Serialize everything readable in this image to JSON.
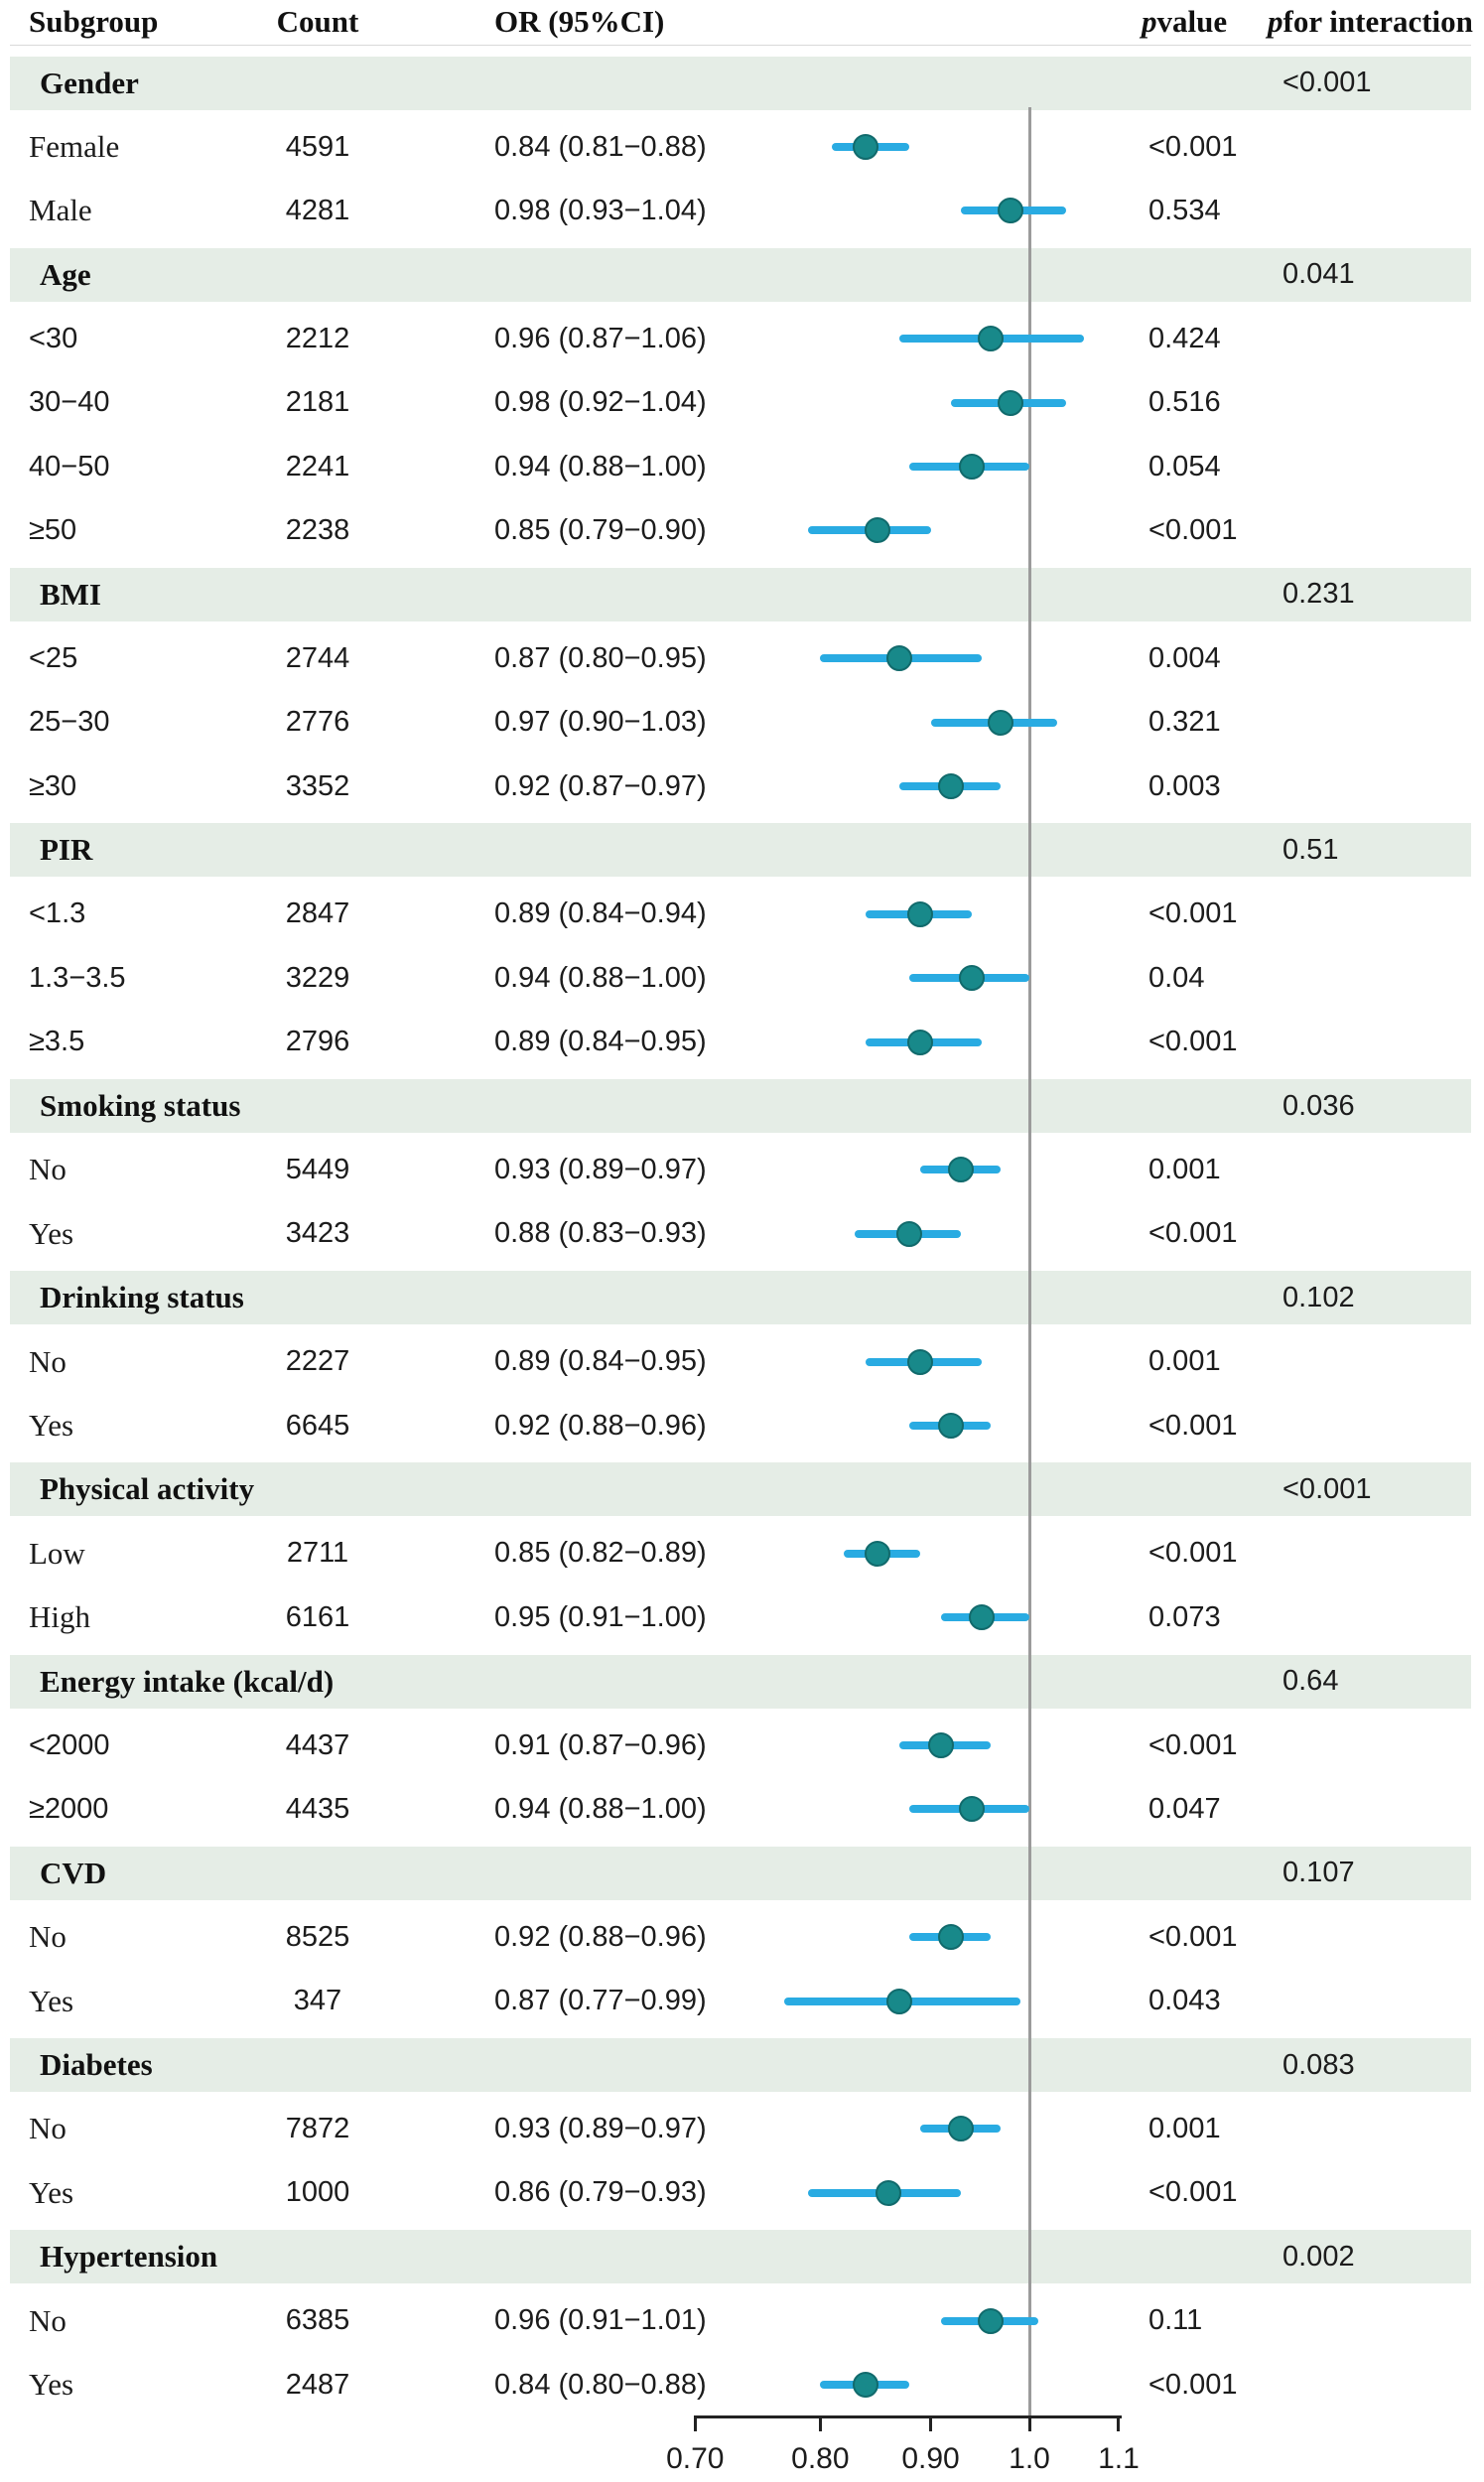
{
  "header": {
    "subgroup": "Subgroup",
    "count": "Count",
    "or_ci": "OR (95%CI)",
    "p_italic": "p",
    "p_value_rest": " value",
    "p_interaction_italic": "p",
    "p_interaction_rest": " for interaction"
  },
  "chart_data": {
    "type": "forest",
    "scale": "log",
    "x_axis": {
      "ticks": [
        0.7,
        0.8,
        0.9,
        1.0,
        1.1
      ],
      "tick_labels": [
        "0.70",
        "0.80",
        "0.90",
        "1.0",
        "1.1"
      ],
      "range": [
        0.7,
        1.1
      ],
      "reference_line": 1.0
    },
    "colors": {
      "dot": "#18898a",
      "dot_border": "#116a6c",
      "ci_line": "#29abe2",
      "reference_line": "#9b9b9b",
      "band": "#e5ede6"
    },
    "rows": [
      {
        "kind": "band",
        "label": "Gender",
        "p_interaction": "<0.001"
      },
      {
        "kind": "data",
        "label": "Female",
        "count": "4591",
        "or_text": "0.84 (0.81−0.88)",
        "or": 0.84,
        "lo": 0.81,
        "hi": 0.88,
        "p": "<0.001"
      },
      {
        "kind": "data",
        "label": "Male",
        "count": "4281",
        "or_text": "0.98 (0.93−1.04)",
        "or": 0.98,
        "lo": 0.93,
        "hi": 1.04,
        "p": "0.534"
      },
      {
        "kind": "band",
        "label": "Age",
        "p_interaction": "0.041"
      },
      {
        "kind": "data",
        "label": "<30",
        "count": "2212",
        "or_text": "0.96 (0.87−1.06)",
        "or": 0.96,
        "lo": 0.87,
        "hi": 1.06,
        "p": "0.424"
      },
      {
        "kind": "data",
        "label": "30−40",
        "count": "2181",
        "or_text": "0.98 (0.92−1.04)",
        "or": 0.98,
        "lo": 0.92,
        "hi": 1.04,
        "p": "0.516"
      },
      {
        "kind": "data",
        "label": "40−50",
        "count": "2241",
        "or_text": "0.94 (0.88−1.00)",
        "or": 0.94,
        "lo": 0.88,
        "hi": 1.0,
        "p": "0.054"
      },
      {
        "kind": "data",
        "label": "≥50",
        "count": "2238",
        "or_text": "0.85 (0.79−0.90)",
        "or": 0.85,
        "lo": 0.79,
        "hi": 0.9,
        "p": "<0.001"
      },
      {
        "kind": "band",
        "label": "BMI",
        "p_interaction": "0.231"
      },
      {
        "kind": "data",
        "label": "<25",
        "count": "2744",
        "or_text": "0.87 (0.80−0.95)",
        "or": 0.87,
        "lo": 0.8,
        "hi": 0.95,
        "p": "0.004"
      },
      {
        "kind": "data",
        "label": "25−30",
        "count": "2776",
        "or_text": "0.97 (0.90−1.03)",
        "or": 0.97,
        "lo": 0.9,
        "hi": 1.03,
        "p": "0.321"
      },
      {
        "kind": "data",
        "label": "≥30",
        "count": "3352",
        "or_text": "0.92 (0.87−0.97)",
        "or": 0.92,
        "lo": 0.87,
        "hi": 0.97,
        "p": "0.003"
      },
      {
        "kind": "band",
        "label": "PIR",
        "p_interaction": "0.51"
      },
      {
        "kind": "data",
        "label": "<1.3",
        "count": "2847",
        "or_text": "0.89 (0.84−0.94)",
        "or": 0.89,
        "lo": 0.84,
        "hi": 0.94,
        "p": "<0.001"
      },
      {
        "kind": "data",
        "label": "1.3−3.5",
        "count": "3229",
        "or_text": "0.94 (0.88−1.00)",
        "or": 0.94,
        "lo": 0.88,
        "hi": 1.0,
        "p": "0.04"
      },
      {
        "kind": "data",
        "label": "≥3.5",
        "count": "2796",
        "or_text": "0.89 (0.84−0.95)",
        "or": 0.89,
        "lo": 0.84,
        "hi": 0.95,
        "p": "<0.001"
      },
      {
        "kind": "band",
        "label": "Smoking status",
        "p_interaction": "0.036"
      },
      {
        "kind": "data",
        "label": "No",
        "count": "5449",
        "or_text": "0.93 (0.89−0.97)",
        "or": 0.93,
        "lo": 0.89,
        "hi": 0.97,
        "p": "0.001"
      },
      {
        "kind": "data",
        "label": "Yes",
        "count": "3423",
        "or_text": "0.88 (0.83−0.93)",
        "or": 0.88,
        "lo": 0.83,
        "hi": 0.93,
        "p": "<0.001"
      },
      {
        "kind": "band",
        "label": "Drinking status",
        "p_interaction": "0.102"
      },
      {
        "kind": "data",
        "label": "No",
        "count": "2227",
        "or_text": "0.89 (0.84−0.95)",
        "or": 0.89,
        "lo": 0.84,
        "hi": 0.95,
        "p": "0.001"
      },
      {
        "kind": "data",
        "label": "Yes",
        "count": "6645",
        "or_text": "0.92 (0.88−0.96)",
        "or": 0.92,
        "lo": 0.88,
        "hi": 0.96,
        "p": "<0.001"
      },
      {
        "kind": "band",
        "label": "Physical activity",
        "p_interaction": "<0.001"
      },
      {
        "kind": "data",
        "label": "Low",
        "count": "2711",
        "or_text": "0.85 (0.82−0.89)",
        "or": 0.85,
        "lo": 0.82,
        "hi": 0.89,
        "p": "<0.001"
      },
      {
        "kind": "data",
        "label": "High",
        "count": "6161",
        "or_text": "0.95 (0.91−1.00)",
        "or": 0.95,
        "lo": 0.91,
        "hi": 1.0,
        "p": "0.073"
      },
      {
        "kind": "band",
        "label": "Energy intake (kcal/d)",
        "p_interaction": "0.64"
      },
      {
        "kind": "data",
        "label": "<2000",
        "count": "4437",
        "or_text": "0.91 (0.87−0.96)",
        "or": 0.91,
        "lo": 0.87,
        "hi": 0.96,
        "p": "<0.001"
      },
      {
        "kind": "data",
        "label": "≥2000",
        "count": "4435",
        "or_text": "0.94 (0.88−1.00)",
        "or": 0.94,
        "lo": 0.88,
        "hi": 1.0,
        "p": "0.047"
      },
      {
        "kind": "band",
        "label": "CVD",
        "p_interaction": "0.107"
      },
      {
        "kind": "data",
        "label": "No",
        "count": "8525",
        "or_text": "0.92 (0.88−0.96)",
        "or": 0.92,
        "lo": 0.88,
        "hi": 0.96,
        "p": "<0.001"
      },
      {
        "kind": "data",
        "label": "Yes",
        "count": "347",
        "or_text": "0.87 (0.77−0.99)",
        "or": 0.87,
        "lo": 0.77,
        "hi": 0.99,
        "p": "0.043"
      },
      {
        "kind": "band",
        "label": "Diabetes",
        "p_interaction": "0.083"
      },
      {
        "kind": "data",
        "label": "No",
        "count": "7872",
        "or_text": "0.93 (0.89−0.97)",
        "or": 0.93,
        "lo": 0.89,
        "hi": 0.97,
        "p": "0.001"
      },
      {
        "kind": "data",
        "label": "Yes",
        "count": "1000",
        "or_text": "0.86 (0.79−0.93)",
        "or": 0.86,
        "lo": 0.79,
        "hi": 0.93,
        "p": "<0.001"
      },
      {
        "kind": "band",
        "label": "Hypertension",
        "p_interaction": "0.002"
      },
      {
        "kind": "data",
        "label": "No",
        "count": "6385",
        "or_text": "0.96 (0.91−1.01)",
        "or": 0.96,
        "lo": 0.91,
        "hi": 1.01,
        "p": "0.11"
      },
      {
        "kind": "data",
        "label": "Yes",
        "count": "2487",
        "or_text": "0.84 (0.80−0.88)",
        "or": 0.84,
        "lo": 0.8,
        "hi": 0.88,
        "p": "<0.001"
      }
    ]
  }
}
